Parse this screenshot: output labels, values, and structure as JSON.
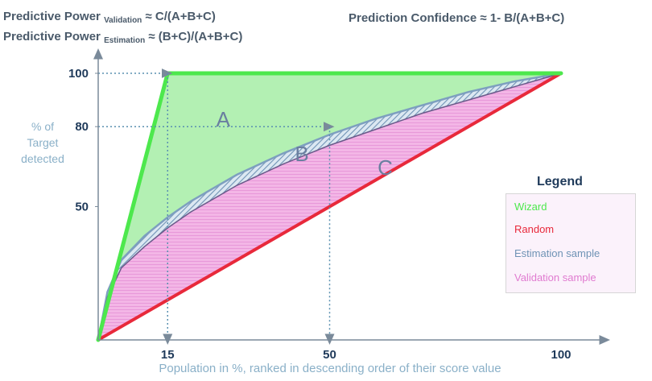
{
  "formulas": {
    "pp_validation": {
      "prefix": "Predictive Power",
      "sub": "Validation",
      "rhs": "≈ C/(A+B+C)"
    },
    "pp_estimation": {
      "prefix": "Predictive Power",
      "sub": "Estimation",
      "rhs": "≈ (B+C)/(A+B+C)"
    },
    "confidence": "Prediction Confidence ≈ 1- B/(A+B+C)"
  },
  "colors": {
    "wizard": "#4de84d",
    "random": "#e8293b",
    "estimation": "#8fb0c8",
    "validation": "#f0a7de",
    "area_a": "#b3f0b3",
    "axis": "#7a8a9a",
    "label": "#8ab0c8",
    "tick": "#1f3a5a",
    "dotted": "#5a90b0"
  },
  "chart_data": {
    "type": "line",
    "title": "",
    "xlabel": "Population in %, ranked in descending order of their score value",
    "ylabel": "% of Target detected",
    "xlim": [
      0,
      100
    ],
    "ylim": [
      0,
      100
    ],
    "x_ticks": [
      15,
      50,
      100
    ],
    "y_ticks": [
      50,
      80,
      100
    ],
    "series": [
      {
        "name": "Wizard",
        "x": [
          0,
          15,
          100
        ],
        "y": [
          0,
          100,
          100
        ]
      },
      {
        "name": "Random",
        "x": [
          0,
          100
        ],
        "y": [
          0,
          100
        ]
      },
      {
        "name": "Estimation sample",
        "x": [
          0,
          2,
          5,
          10,
          15,
          20,
          30,
          40,
          50,
          60,
          70,
          80,
          90,
          100
        ],
        "y": [
          0,
          18,
          30,
          39,
          46,
          52,
          62,
          70,
          77,
          83,
          88,
          93,
          97,
          100
        ]
      },
      {
        "name": "Validation sample",
        "x": [
          0,
          2,
          5,
          10,
          15,
          20,
          30,
          40,
          50,
          60,
          70,
          80,
          90,
          100
        ],
        "y": [
          0,
          16,
          27,
          35,
          42,
          48,
          58,
          66,
          73,
          79,
          85,
          90,
          95,
          100
        ]
      }
    ],
    "reference_lines": [
      {
        "from": [
          0,
          100
        ],
        "to": [
          15,
          100
        ]
      },
      {
        "from": [
          15,
          100
        ],
        "to": [
          15,
          0
        ]
      },
      {
        "from": [
          0,
          80
        ],
        "to": [
          50,
          80
        ]
      },
      {
        "from": [
          50,
          80
        ],
        "to": [
          50,
          0
        ]
      }
    ],
    "regions": [
      {
        "label": "A",
        "x": 27,
        "y": 80
      },
      {
        "label": "B",
        "x": 44,
        "y": 67
      },
      {
        "label": "C",
        "x": 62,
        "y": 62
      }
    ],
    "legend": {
      "title": "Legend",
      "position": "right",
      "items": [
        {
          "label": "Wizard",
          "color": "#4de84d"
        },
        {
          "label": "Random",
          "color": "#e8293b"
        },
        {
          "label": "Estimation sample",
          "color": "#6f93b5"
        },
        {
          "label": "Validation sample",
          "color": "#e07bd0"
        }
      ]
    }
  }
}
